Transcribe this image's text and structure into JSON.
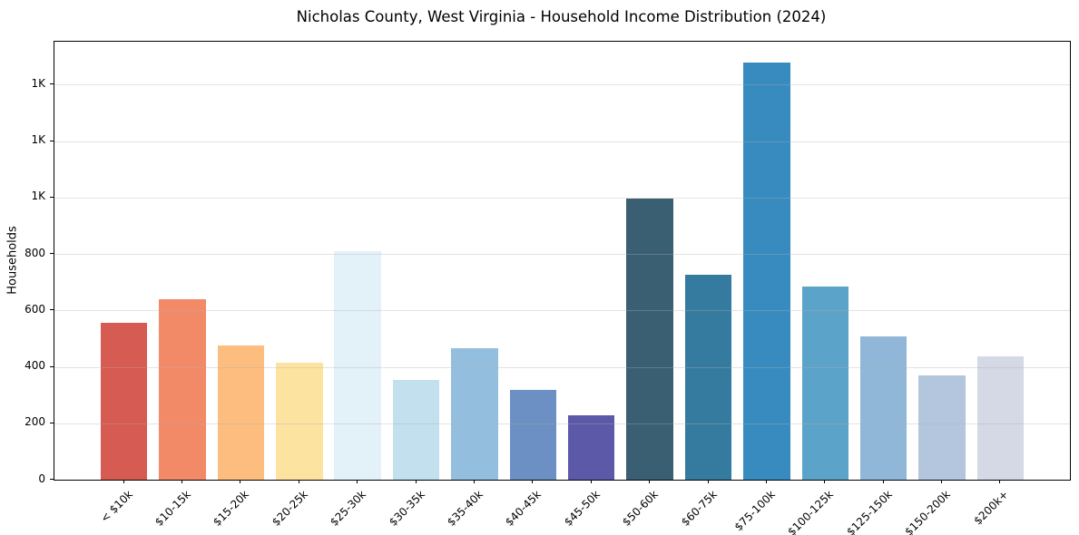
{
  "figure": {
    "background": "#ffffff",
    "spine_color": "#000000"
  },
  "chart_data": {
    "type": "bar",
    "title": "Nicholas County, West Virginia - Household Income Distribution (2024)",
    "xlabel": "",
    "ylabel": "Households",
    "categories": [
      "< $10k",
      "$10-15k",
      "$15-20k",
      "$20-25k",
      "$25-30k",
      "$30-35k",
      "$35-40k",
      "$40-45k",
      "$45-50k",
      "$50-60k",
      "$60-75k",
      "$75-100k",
      "$100-125k",
      "$125-150k",
      "$150-200k",
      "$200k+"
    ],
    "values": [
      555,
      640,
      475,
      416,
      810,
      353,
      465,
      318,
      227,
      996,
      727,
      1478,
      684,
      507,
      368,
      437
    ],
    "bar_colors": [
      "#d65b52",
      "#f28a68",
      "#fcbd7e",
      "#fde3a0",
      "#e3f1f8",
      "#c2e0ee",
      "#94bedd",
      "#6c90c4",
      "#5c5aa8",
      "#3a5f72",
      "#357b9f",
      "#388bbf",
      "#5ba3c9",
      "#90b7d7",
      "#b4c6dd",
      "#d5d8e5"
    ],
    "ylim": [
      0,
      1552
    ],
    "yticks": [
      0,
      200,
      400,
      600,
      800,
      1000,
      1200,
      1400
    ],
    "ytick_labels": [
      "0",
      "200",
      "400",
      "600",
      "800",
      "1K",
      "1K",
      "1K"
    ],
    "xtick_rotation_deg": 45,
    "grid": true,
    "grid_axis": "y",
    "grid_color": "#b0b0b0",
    "grid_alpha": 0.35,
    "grid_above_bars": true,
    "legend": null
  }
}
